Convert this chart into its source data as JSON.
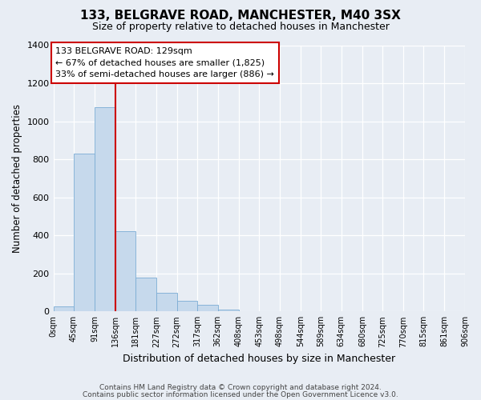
{
  "title": "133, BELGRAVE ROAD, MANCHESTER, M40 3SX",
  "subtitle": "Size of property relative to detached houses in Manchester",
  "xlabel": "Distribution of detached houses by size in Manchester",
  "ylabel": "Number of detached properties",
  "bar_color": "#c6d9ec",
  "bar_edgecolor": "#7bacd4",
  "background_color": "#e8edf4",
  "plot_bg_color": "#e8edf4",
  "grid_color": "#ffffff",
  "property_line_x": 136,
  "property_line_color": "#cc0000",
  "annotation_box_edgecolor": "#cc0000",
  "annotation_title": "133 BELGRAVE ROAD: 129sqm",
  "annotation_line1": "← 67% of detached houses are smaller (1,825)",
  "annotation_line2": "33% of semi-detached houses are larger (886) →",
  "bin_edges": [
    0,
    45,
    91,
    136,
    181,
    227,
    272,
    317,
    362,
    408,
    453,
    498,
    544,
    589,
    634,
    680,
    725,
    770,
    815,
    861,
    906
  ],
  "bin_counts": [
    25,
    830,
    1075,
    420,
    180,
    100,
    57,
    35,
    10,
    2,
    0,
    0,
    0,
    0,
    0,
    0,
    0,
    0,
    0,
    0
  ],
  "ylim": [
    0,
    1400
  ],
  "yticks": [
    0,
    200,
    400,
    600,
    800,
    1000,
    1200,
    1400
  ],
  "footer_line1": "Contains HM Land Registry data © Crown copyright and database right 2024.",
  "footer_line2": "Contains public sector information licensed under the Open Government Licence v3.0."
}
